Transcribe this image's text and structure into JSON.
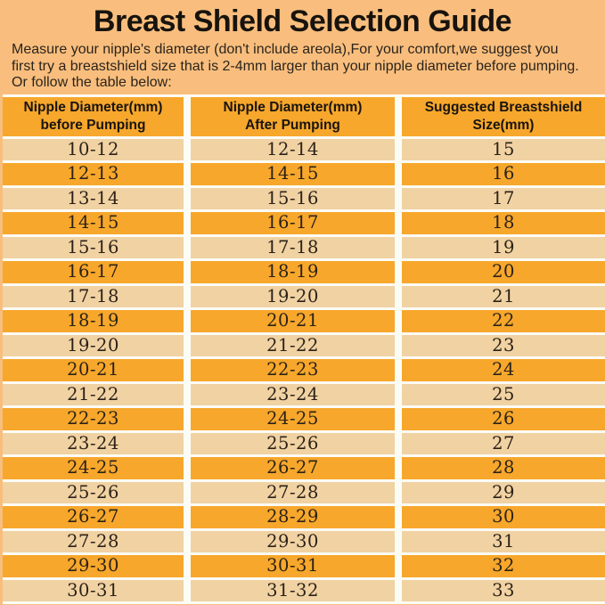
{
  "page": {
    "title": "Breast Shield Selection Guide",
    "intro_lines": [
      "Measure your nipple's diameter   (don't include areola),For your comfort,we suggest you",
      "first try a breastshield size that is 2-4mm larger than your nipple diameter before pumping.",
      "Or follow the table below:"
    ]
  },
  "colors": {
    "background": "#F9BE7D",
    "row_orange": "#F7A72B",
    "row_light": "#F1D2A3",
    "separator_white": "#FCFCF6",
    "text_dark": "#241e16"
  },
  "table": {
    "columns": [
      {
        "line1": "Nipple Diameter(mm)",
        "line2": "before Pumping"
      },
      {
        "line1": "Nipple Diameter(mm)",
        "line2": "After Pumping"
      },
      {
        "line1": "Suggested Breastshield",
        "line2": "Size(mm)"
      }
    ],
    "rows": [
      [
        "10-12",
        "12-14",
        "15"
      ],
      [
        "12-13",
        "14-15",
        "16"
      ],
      [
        "13-14",
        "15-16",
        "17"
      ],
      [
        "14-15",
        "16-17",
        "18"
      ],
      [
        "15-16",
        "17-18",
        "19"
      ],
      [
        "16-17",
        "18-19",
        "20"
      ],
      [
        "17-18",
        "19-20",
        "21"
      ],
      [
        "18-19",
        "20-21",
        "22"
      ],
      [
        "19-20",
        "21-22",
        "23"
      ],
      [
        "20-21",
        "22-23",
        "24"
      ],
      [
        "21-22",
        "23-24",
        "25"
      ],
      [
        "22-23",
        "24-25",
        "26"
      ],
      [
        "23-24",
        "25-26",
        "27"
      ],
      [
        "24-25",
        "26-27",
        "28"
      ],
      [
        "25-26",
        "27-28",
        "29"
      ],
      [
        "26-27",
        "28-29",
        "30"
      ],
      [
        "27-28",
        "29-30",
        "31"
      ],
      [
        "29-30",
        "30-31",
        "32"
      ],
      [
        "30-31",
        "31-32",
        "33"
      ]
    ]
  }
}
